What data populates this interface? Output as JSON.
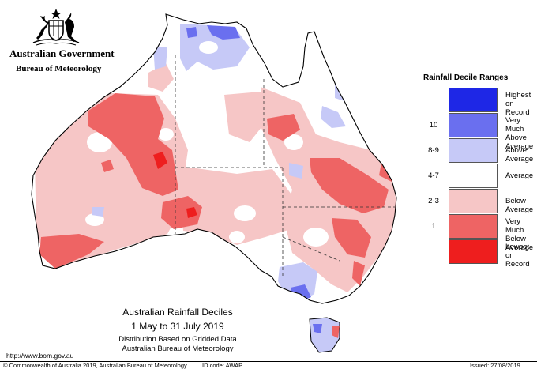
{
  "header": {
    "government": "Australian Government",
    "agency": "Bureau of Meteorology"
  },
  "legend": {
    "title": "Rainfall Decile Ranges",
    "items": [
      {
        "range": "",
        "label": "Highest on Record",
        "color": "#1e27e6"
      },
      {
        "range": "10",
        "label": "Very Much Above Average",
        "color": "#6a6fef"
      },
      {
        "range": "8-9",
        "label": "Above Average",
        "color": "#c6c9f7"
      },
      {
        "range": "4-7",
        "label": "Average",
        "color": "#ffffff"
      },
      {
        "range": "2-3",
        "label": "Below Average",
        "color": "#f6c6c6"
      },
      {
        "range": "1",
        "label": "Very Much Below Average",
        "color": "#ee6464"
      },
      {
        "range": "",
        "label": "Lowest on Record",
        "color": "#ee1e1e"
      }
    ]
  },
  "map_title": {
    "line1": "Australian Rainfall Deciles",
    "line2": "1 May to 31 July 2019",
    "line3": "Distribution Based on Gridded Data",
    "line4": "Australian Bureau of Meteorology"
  },
  "footer": {
    "url": "http://www.bom.gov.au",
    "copyright": "© Commonwealth of Australia 2019, Australian Bureau of Meteorology",
    "id_code": "ID code: AWAP",
    "issued": "Issued: 27/08/2019"
  }
}
